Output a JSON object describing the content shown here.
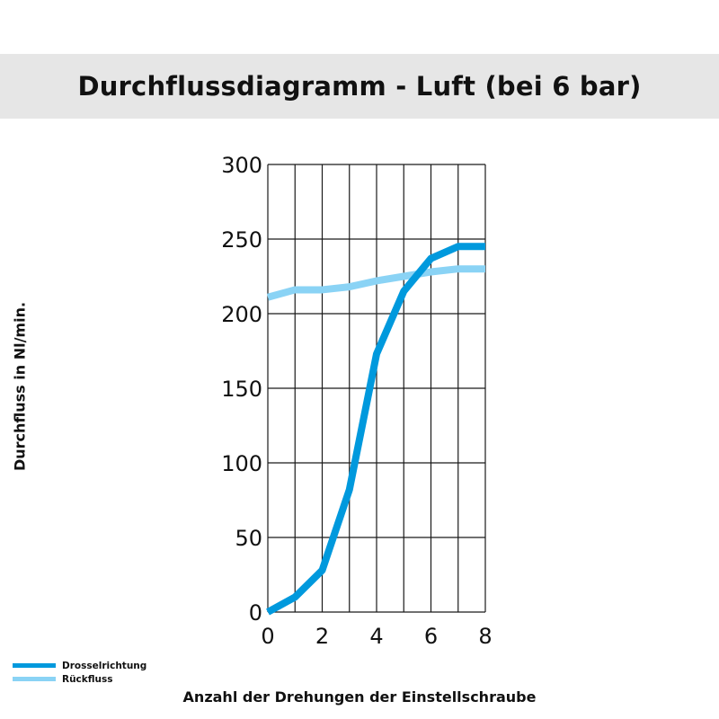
{
  "chart_data": {
    "type": "line",
    "title": "Durchflussdiagramm - Luft (bei 6 bar)",
    "xlabel": "Anzahl der Drehungen der Einstellschraube",
    "ylabel": "Durchfluss in Nl/min.",
    "xlim": [
      0,
      8
    ],
    "ylim": [
      0,
      300
    ],
    "x_ticks": [
      "0",
      "2",
      "4",
      "6",
      "8"
    ],
    "y_ticks": [
      "0",
      "50",
      "100",
      "150",
      "200",
      "250",
      "300"
    ],
    "grid": true,
    "legend_position": "bottom-left",
    "series": [
      {
        "name": "Drosselrichtung",
        "color": "#0099dd",
        "x": [
          0,
          1,
          2,
          3,
          4,
          5,
          6,
          7,
          8
        ],
        "y": [
          0,
          10,
          28,
          82,
          173,
          215,
          237,
          245,
          245
        ]
      },
      {
        "name": "Rückfluss",
        "color": "#8ad3f5",
        "x": [
          0,
          1,
          2,
          3,
          4,
          5,
          6,
          7,
          8
        ],
        "y": [
          211,
          216,
          216,
          218,
          222,
          225,
          228,
          230,
          230
        ]
      }
    ]
  }
}
